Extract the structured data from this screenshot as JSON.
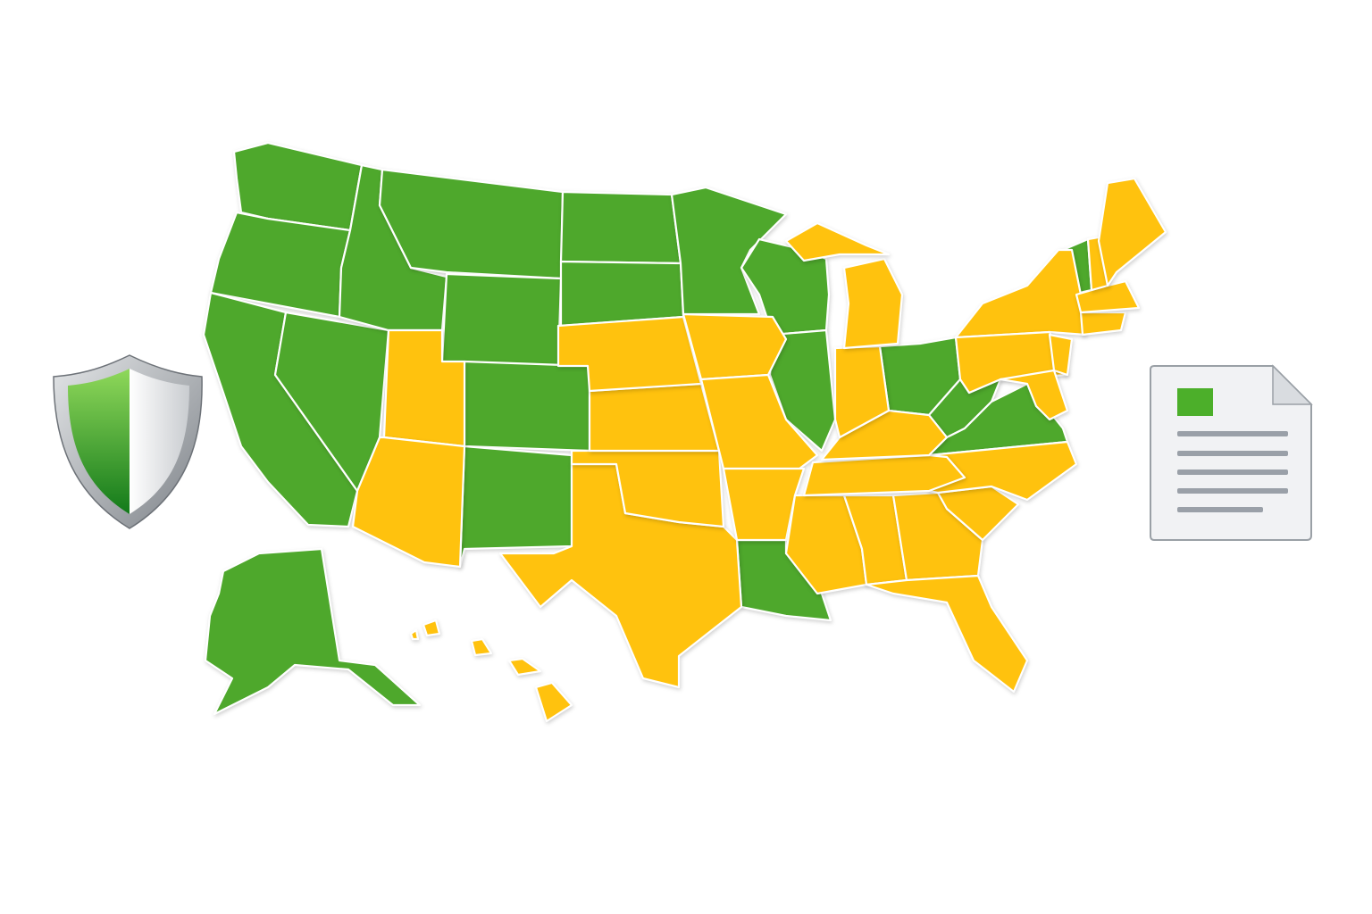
{
  "colors": {
    "green": "#4ea82c",
    "yellow": "#ffc20e",
    "shield_green": "#2f9a1e",
    "doc_square": "#4caf2a",
    "doc_lines": "#9aa0a8"
  },
  "states": {
    "WA": "green",
    "OR": "green",
    "CA": "green",
    "NV": "green",
    "ID": "green",
    "MT": "green",
    "WY": "green",
    "ND": "green",
    "SD": "green",
    "MN": "green",
    "WI": "green",
    "CO": "green",
    "NM": "green",
    "IL": "green",
    "OH": "green",
    "WV": "green",
    "VA": "green",
    "VT": "green",
    "LA": "green",
    "AK": "green",
    "UT": "yellow",
    "AZ": "yellow",
    "TX": "yellow",
    "OK": "yellow",
    "KS": "yellow",
    "NE": "yellow",
    "IA": "yellow",
    "MO": "yellow",
    "AR": "yellow",
    "MS": "yellow",
    "AL": "yellow",
    "GA": "yellow",
    "FL": "yellow",
    "SC": "yellow",
    "NC": "yellow",
    "TN": "yellow",
    "KY": "yellow",
    "IN": "yellow",
    "MI": "yellow",
    "MI_UP": "yellow",
    "NY": "yellow",
    "PA": "yellow",
    "NJ": "yellow",
    "MD": "yellow",
    "CT": "yellow",
    "MA": "yellow",
    "NH": "yellow",
    "ME": "yellow",
    "HI1": "yellow",
    "HI2": "yellow",
    "HI3": "yellow",
    "HI4": "yellow",
    "HI5": "yellow"
  },
  "icons": {
    "left": "shield-icon",
    "right": "document-icon"
  }
}
